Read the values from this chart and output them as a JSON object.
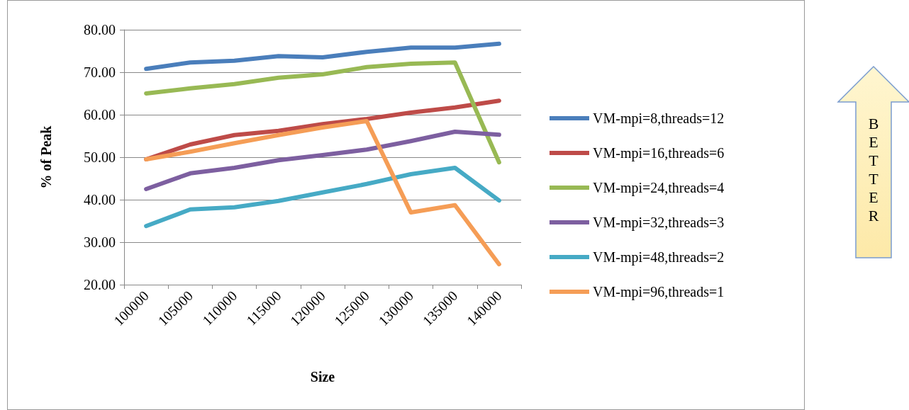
{
  "chart_data": {
    "type": "line",
    "xlabel": "Size",
    "ylabel": "% of Peak",
    "categories": [
      "100000",
      "105000",
      "110000",
      "115000",
      "120000",
      "125000",
      "130000",
      "135000",
      "140000"
    ],
    "series": [
      {
        "name": "VM-mpi=8,threads=12",
        "color": "#4a7ebb",
        "values": [
          70.8,
          72.3,
          72.7,
          73.8,
          73.5,
          74.8,
          75.8,
          75.8,
          76.7
        ]
      },
      {
        "name": "VM-mpi=16,threads=6",
        "color": "#be4b48",
        "values": [
          49.5,
          53,
          55.2,
          56.2,
          57.8,
          59,
          60.5,
          61.7,
          63.3
        ]
      },
      {
        "name": "VM-mpi=24,threads=4",
        "color": "#98b954",
        "values": [
          65,
          66.2,
          67.2,
          68.7,
          69.5,
          71.2,
          72,
          72.3,
          48.8
        ]
      },
      {
        "name": "VM-mpi=32,threads=3",
        "color": "#7d5fa0",
        "values": [
          42.5,
          46.2,
          47.5,
          49.3,
          50.5,
          51.8,
          53.8,
          56,
          55.3
        ]
      },
      {
        "name": "VM-mpi=48,threads=2",
        "color": "#46aac5",
        "values": [
          33.8,
          37.7,
          38.2,
          39.7,
          41.7,
          43.7,
          46,
          47.5,
          39.8
        ]
      },
      {
        "name": "VM-mpi=96,threads=1",
        "color": "#f59d56",
        "values": [
          49.5,
          51.3,
          53.3,
          55.2,
          57,
          58.5,
          37,
          38.7,
          24.8
        ]
      }
    ],
    "ylim": [
      20,
      80
    ],
    "yticks": [
      {
        "value": 20,
        "label": "20.00"
      },
      {
        "value": 30,
        "label": "30.00"
      },
      {
        "value": 40,
        "label": "40.00"
      },
      {
        "value": 50,
        "label": "50.00"
      },
      {
        "value": 60,
        "label": "60.00"
      },
      {
        "value": 70,
        "label": "70.00"
      },
      {
        "value": 80,
        "label": "80.00"
      }
    ],
    "grid": "y",
    "legend": "right",
    "marker": "none",
    "line_style": "solid",
    "annotations": [
      "BETTER"
    ]
  }
}
